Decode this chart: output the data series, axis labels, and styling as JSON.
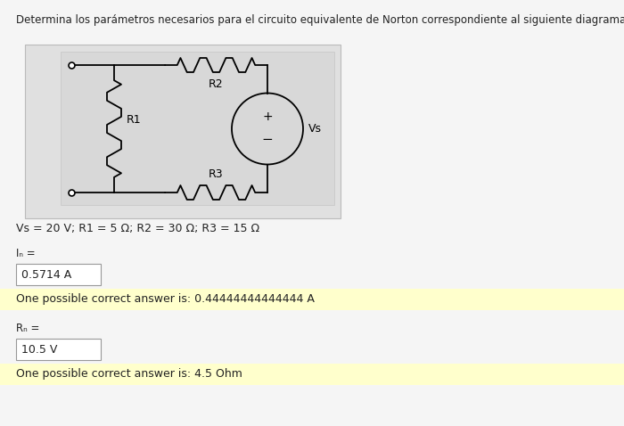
{
  "title": "Determina los parámetros necesarios para el circuito equivalente de Norton correspondiente al siguiente diagrama.",
  "params_text": "Vs = 20 V; R1 = 5 Ω; R2 = 30 Ω; R3 = 15 Ω",
  "IN_label": "Iₙ =",
  "IN_value": "0.5714 A",
  "IN_answer": "One possible correct answer is: 0.44444444444444 A",
  "RN_label": "Rₙ =",
  "RN_value": "10.5 V",
  "RN_answer": "One possible correct answer is: 4.5 Ohm",
  "bg_color": "#e8e8e8",
  "outer_box_color": "#d0d0d0",
  "circuit_bg": "#dcdcdc",
  "inner_circuit_bg": "#e0e0e0",
  "answer_bg": "#ffffcc",
  "input_bg": "#ffffff",
  "text_color": "#222222",
  "font_size_title": 8.5,
  "font_size_body": 9,
  "font_size_label": 8.0
}
